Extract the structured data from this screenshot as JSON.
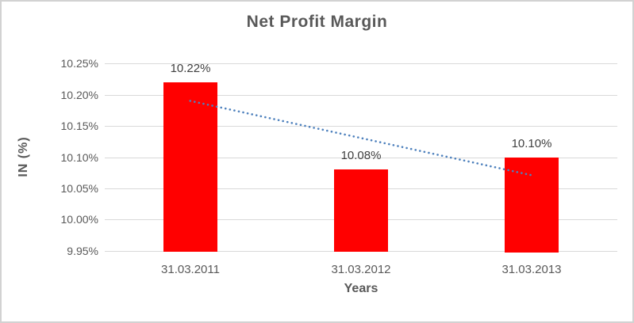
{
  "chart_data": {
    "type": "bar",
    "title": "Net Profit Margin",
    "xlabel": "Years",
    "ylabel": "IN (%)",
    "categories": [
      "31.03.2011",
      "31.03.2012",
      "31.03.2013"
    ],
    "values": [
      10.22,
      10.08,
      10.1
    ],
    "data_labels": [
      "10.22%",
      "10.08%",
      "10.10%"
    ],
    "ylim": [
      9.95,
      10.25
    ],
    "ytick_step": 0.05,
    "ytick_labels": [
      "9.95%",
      "10.00%",
      "10.05%",
      "10.10%",
      "10.15%",
      "10.20%",
      "10.25%"
    ],
    "grid": true,
    "legend": "none",
    "bar_color": "#ff0000",
    "trendline": {
      "type": "linear",
      "style": "dotted",
      "color": "#4e81bd",
      "start_value": 10.19,
      "end_value": 10.071
    },
    "colors": {
      "title_text": "#595959",
      "axis_text": "#595959",
      "data_label_text": "#404040",
      "gridline": "#d9d9d9",
      "frame_border": "#d2d2d2",
      "background": "#ffffff"
    }
  }
}
